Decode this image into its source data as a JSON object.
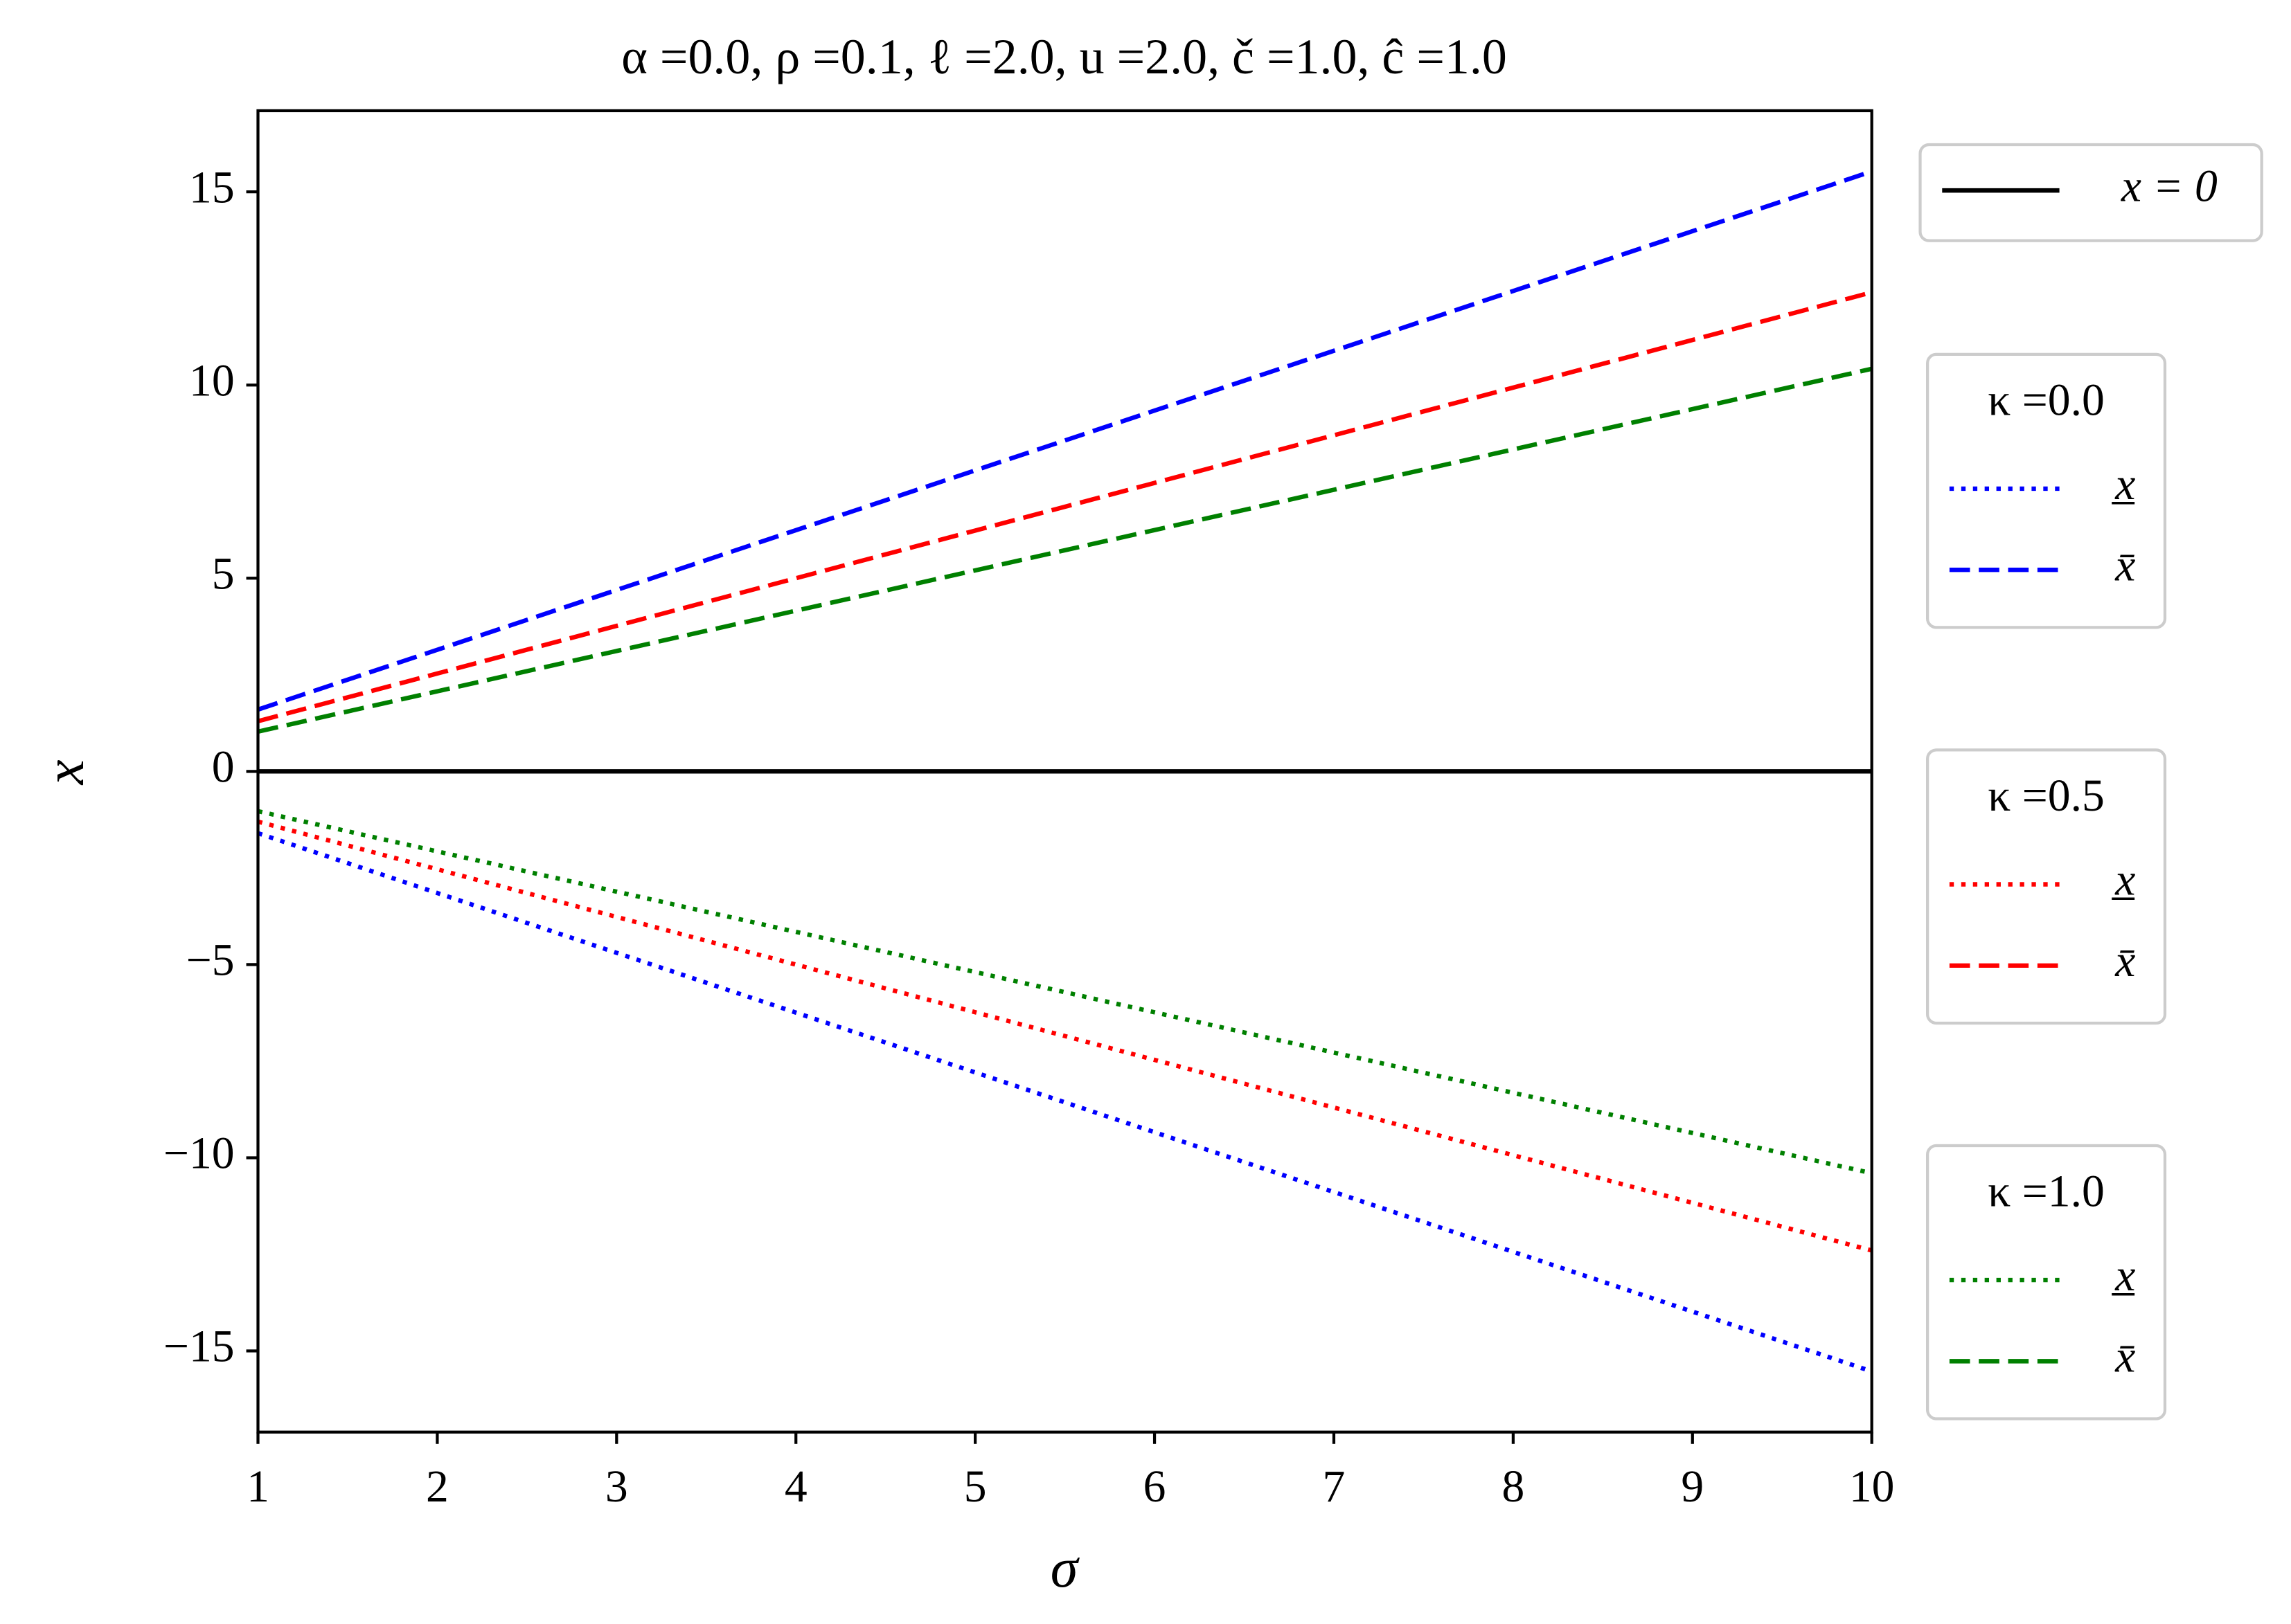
{
  "chart_data": {
    "type": "line",
    "title": "α =0.0, ρ =0.1, ℓ =2.0, u =2.0, č =1.0, ĉ =1.0",
    "x_label": "σ",
    "y_label": "x",
    "x": [
      1,
      10
    ],
    "xlim": [
      1,
      10
    ],
    "xticks": [
      1,
      2,
      3,
      4,
      5,
      6,
      7,
      8,
      9,
      10
    ],
    "ylim": [
      -17.1,
      17.1
    ],
    "yticks": [
      {
        "value": -15,
        "label": "−15"
      },
      {
        "value": -10,
        "label": "−10"
      },
      {
        "value": -5,
        "label": "−5"
      },
      0,
      5,
      10,
      15
    ],
    "reference_line": {
      "name": "x = 0",
      "value": 0,
      "color": "#000000"
    },
    "groups": [
      {
        "title": "κ =0.0",
        "series": [
          {
            "name": "x̲",
            "color": "#0000ff",
            "style": "dotted",
            "values": [
              -1.6,
              -15.53
            ]
          },
          {
            "name": "x̄",
            "color": "#0000ff",
            "style": "dashed",
            "values": [
              1.6,
              15.53
            ]
          }
        ]
      },
      {
        "title": "κ =0.5",
        "series": [
          {
            "name": "x̲",
            "color": "#ff0000",
            "style": "dotted",
            "values": [
              -1.3,
              -12.4
            ]
          },
          {
            "name": "x̄",
            "color": "#ff0000",
            "style": "dashed",
            "values": [
              1.3,
              12.4
            ]
          }
        ]
      },
      {
        "title": "κ =1.0",
        "series": [
          {
            "name": "x̲",
            "color": "#008000",
            "style": "dotted",
            "values": [
              -1.03,
              -10.4
            ]
          },
          {
            "name": "x̄",
            "color": "#008000",
            "style": "dashed",
            "values": [
              1.03,
              10.42
            ]
          }
        ]
      }
    ]
  }
}
